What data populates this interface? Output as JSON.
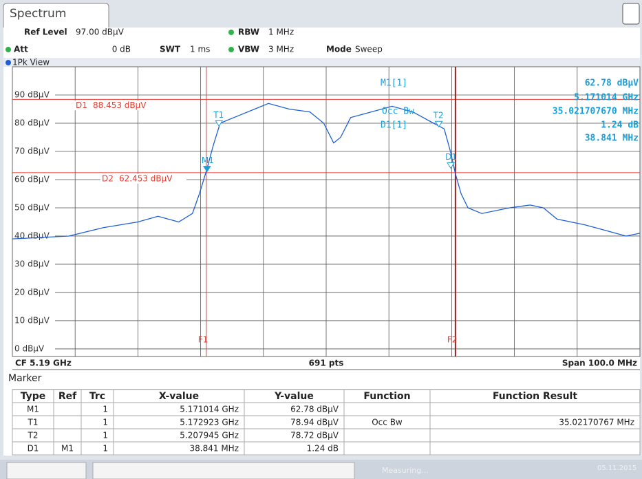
{
  "header": {
    "tab": "Spectrum",
    "ref_level_label": "Ref Level",
    "ref_level": "97.00 dBµV",
    "att_label": "Att",
    "att": "0 dB",
    "swt_label": "SWT",
    "swt": "1 ms",
    "rbw_label": "RBW",
    "rbw": "1 MHz",
    "vbw_label": "VBW",
    "vbw": "3 MHz",
    "mode_label": "Mode",
    "mode": "Sweep",
    "view": "1Pk View"
  },
  "chart_data": {
    "type": "line",
    "x": [
      5.14,
      5.149,
      5.1545,
      5.16,
      5.1632,
      5.1665,
      5.1687,
      5.1698,
      5.1709,
      5.172,
      5.1731,
      5.1764,
      5.1808,
      5.1841,
      5.1874,
      5.1896,
      5.1912,
      5.1923,
      5.1939,
      5.1972,
      5.2005,
      5.2038,
      5.2071,
      5.2088,
      5.2098,
      5.2106,
      5.2115,
      5.2126,
      5.2148,
      5.2192,
      5.2225,
      5.2246,
      5.2268,
      5.2312,
      5.2345,
      5.2378,
      5.24
    ],
    "series": [
      {
        "name": "1Pk",
        "color": "#1f5fd6",
        "values": [
          39,
          40,
          43,
          45,
          47,
          45,
          48,
          55,
          63,
          72,
          80,
          83,
          87,
          85,
          84,
          80,
          73,
          75,
          82,
          84,
          86,
          84,
          80,
          78,
          70,
          62,
          55,
          50,
          48,
          50,
          51,
          50,
          46,
          44,
          42,
          40,
          41
        ]
      }
    ],
    "xlim": [
      5.14,
      5.24
    ],
    "ylim": [
      -2.7,
      100
    ],
    "yticks": [
      {
        "value": 0,
        "label": "0 dBµV"
      },
      {
        "value": 10,
        "label": "10 dBµV"
      },
      {
        "value": 20,
        "label": "20 dBµV"
      },
      {
        "value": 30,
        "label": "30 dBµV"
      },
      {
        "value": 40,
        "label": "40 dBµV"
      },
      {
        "value": 50,
        "label": "50 dBµV"
      },
      {
        "value": 60,
        "label": "60 dBµV"
      },
      {
        "value": 70,
        "label": "70 dBµV"
      },
      {
        "value": 80,
        "label": "80 dBµV"
      },
      {
        "value": 90,
        "label": "90 dBµV"
      }
    ],
    "grid": true,
    "hlines": [
      {
        "name": "D1",
        "value": 88.453,
        "value_label": "88.453 dBµV"
      },
      {
        "name": "D2",
        "value": 62.453,
        "value_label": "62.453 dBµV"
      }
    ],
    "vlines": [
      {
        "name": "F1",
        "value": 5.1709
      },
      {
        "name": "F2",
        "value": 5.2106
      }
    ],
    "markers": [
      {
        "name": "M1",
        "x": 5.171014,
        "y": 62.78
      },
      {
        "name": "T1",
        "x": 5.172923,
        "y": 78.94
      },
      {
        "name": "T2",
        "x": 5.207945,
        "y": 78.72
      },
      {
        "name": "D1",
        "x": 5.209855,
        "y": 64.02
      }
    ],
    "annotation": {
      "m1": "M1[1]",
      "m1_level": "62.78 dBµV",
      "m1_freq": "5.171014 GHz",
      "occ": "Occ Bw",
      "occ_value": "35.021707670 MHz",
      "d1": "D1[1]",
      "d1_level": "1.24 dB",
      "d1_freq": "38.841 MHz"
    }
  },
  "footer": {
    "cf": "CF 5.19 GHz",
    "pts": "691 pts",
    "span": "Span 100.0 MHz"
  },
  "marker_table": {
    "title": "Marker",
    "columns": [
      "Type",
      "Ref",
      "Trc",
      "X-value",
      "Y-value",
      "Function",
      "Function Result"
    ],
    "rows": [
      {
        "type": "M1",
        "trc": "1",
        "x": "5.171014 GHz",
        "y": "62.78 dBµV"
      },
      {
        "type": "T1",
        "trc": "1",
        "x": "5.172923 GHz",
        "y": "78.94 dBµV",
        "function": "Occ Bw",
        "result": "35.02170767 MHz"
      },
      {
        "type": "T2",
        "trc": "1",
        "x": "5.207945 GHz",
        "y": "78.72 dBµV"
      },
      {
        "type": "D1",
        "ref": "M1",
        "trc": "1",
        "x": "38.841 MHz",
        "y": "1.24 dB"
      }
    ]
  },
  "status": {
    "state": "Measuring...",
    "date": "05.11.2015"
  }
}
